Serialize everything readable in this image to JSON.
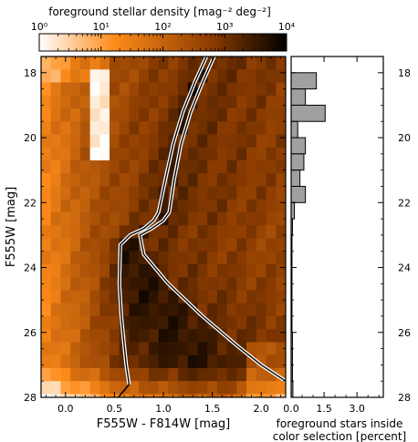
{
  "chart_data": [
    {
      "type": "heatmap",
      "title": "foreground stellar density [mag⁻² deg⁻²]",
      "colorbar": {
        "label": "foreground stellar density [mag⁻² deg⁻²]",
        "scale": "log",
        "range": [
          1,
          10000
        ],
        "ticks": [
          {
            "value": 1,
            "label": "10⁰"
          },
          {
            "value": 10,
            "label": "10¹"
          },
          {
            "value": 100,
            "label": "10²"
          },
          {
            "value": 1000,
            "label": "10³"
          },
          {
            "value": 10000,
            "label": "10⁴"
          }
        ],
        "colors": [
          "#ffffff",
          "#ff8c1a",
          "#8a3b00",
          "#000000"
        ]
      },
      "xlabel": "F555W - F814W [mag]",
      "ylabel": "F555W [mag]",
      "xlim": [
        -0.25,
        2.25
      ],
      "ylim": [
        28,
        17.5
      ],
      "y_inverted": true,
      "xticks": [
        0.0,
        0.5,
        1.0,
        1.5,
        2.0
      ],
      "xtick_labels": [
        "0.0",
        "0.5",
        "1.0",
        "1.5",
        "2.0"
      ],
      "yticks": [
        18,
        20,
        22,
        24,
        26,
        28
      ],
      "ytick_labels": [
        "18",
        "20",
        "22",
        "24",
        "26",
        "28"
      ],
      "bin_width": 0.1,
      "bin_height": 0.4,
      "color_selection_boundary": {
        "left_edge": {
          "x": [
            1.44,
            1.32,
            1.2,
            1.1,
            1.02,
            0.95,
            0.9,
            0.8,
            0.66,
            0.56,
            0.55,
            0.57,
            0.6,
            0.62,
            0.65
          ],
          "y": [
            17.5,
            18.3,
            19.2,
            20.2,
            21.3,
            22.3,
            22.55,
            22.8,
            23.0,
            23.3,
            24.5,
            25.5,
            26.4,
            27.0,
            27.6
          ]
        },
        "right_edge": {
          "x": [
            1.52,
            1.4,
            1.28,
            1.18,
            1.11,
            1.06,
            1.0,
            0.88,
            0.76,
            0.8,
            1.05,
            1.4,
            1.75,
            2.0,
            2.25
          ],
          "y": [
            17.5,
            18.3,
            19.2,
            20.2,
            21.3,
            22.3,
            22.55,
            22.8,
            23.0,
            23.6,
            24.5,
            25.5,
            26.4,
            27.0,
            27.5
          ]
        },
        "extensions": [
          {
            "x": [
              0.65,
              0.54
            ],
            "y": [
              27.6,
              28.0
            ]
          },
          {
            "x": [
              2.25,
              2.35
            ],
            "y": [
              27.5,
              27.9
            ]
          }
        ]
      }
    },
    {
      "type": "bar",
      "orientation": "horizontal",
      "xlabel": "foreground stars inside color selection [percent]",
      "xlabel_lines": [
        "foreground stars inside",
        "color selection [percent]"
      ],
      "xlim": [
        0,
        4.2
      ],
      "xticks": [
        0.0,
        1.5,
        3.0
      ],
      "xtick_labels": [
        "0.0",
        "1.5",
        "3.0"
      ],
      "ylim": [
        28,
        17.5
      ],
      "yticks": [
        18,
        20,
        22,
        24,
        26,
        28
      ],
      "ytick_labels": [
        "18",
        "20",
        "22",
        "24",
        "26",
        "28"
      ],
      "bin_height": 0.5,
      "bar_color": "#a0a0a0",
      "bins": [
        {
          "y0": 18.0,
          "y1": 18.5,
          "value": 1.15
        },
        {
          "y0": 18.5,
          "y1": 19.0,
          "value": 0.65
        },
        {
          "y0": 19.0,
          "y1": 19.5,
          "value": 1.55
        },
        {
          "y0": 19.5,
          "y1": 20.0,
          "value": 0.3
        },
        {
          "y0": 20.0,
          "y1": 20.5,
          "value": 0.65
        },
        {
          "y0": 20.5,
          "y1": 21.0,
          "value": 0.58
        },
        {
          "y0": 21.0,
          "y1": 21.5,
          "value": 0.4
        },
        {
          "y0": 21.5,
          "y1": 22.0,
          "value": 0.65
        },
        {
          "y0": 22.0,
          "y1": 22.5,
          "value": 0.15
        },
        {
          "y0": 22.5,
          "y1": 23.0,
          "value": 0.06
        },
        {
          "y0": 23.0,
          "y1": 23.5,
          "value": 0.04
        },
        {
          "y0": 23.5,
          "y1": 24.0,
          "value": 0.04
        },
        {
          "y0": 24.0,
          "y1": 24.5,
          "value": 0.04
        },
        {
          "y0": 24.5,
          "y1": 25.0,
          "value": 0.04
        },
        {
          "y0": 25.0,
          "y1": 25.5,
          "value": 0.04
        },
        {
          "y0": 25.5,
          "y1": 26.0,
          "value": 0.04
        },
        {
          "y0": 26.0,
          "y1": 26.5,
          "value": 0.06
        },
        {
          "y0": 26.5,
          "y1": 27.0,
          "value": 0.06
        },
        {
          "y0": 27.0,
          "y1": 27.5,
          "value": 0.06
        },
        {
          "y0": 27.5,
          "y1": 28.0,
          "value": 0.08
        }
      ]
    }
  ]
}
